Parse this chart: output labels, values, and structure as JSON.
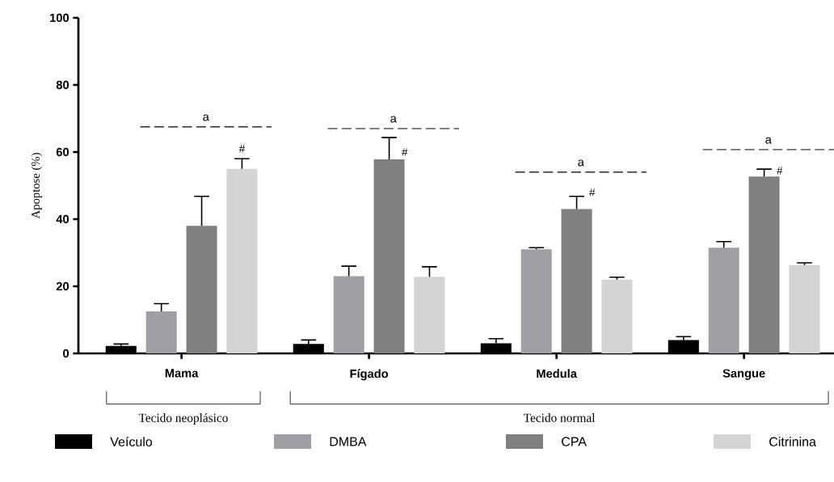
{
  "chart_data": {
    "type": "bar",
    "ylabel": "Apoptose (%)",
    "categories": [
      "Mama",
      "Fígado",
      "Medula",
      "Sangue"
    ],
    "series": [
      {
        "name": "Veículo",
        "color": "#000000",
        "values": [
          2.2,
          2.8,
          3.0,
          4.0
        ],
        "errors": [
          0.6,
          1.2,
          1.4,
          1.0
        ]
      },
      {
        "name": "DMBA",
        "color": "#a0a0a4",
        "values": [
          12.5,
          23.0,
          31.0,
          31.5
        ],
        "errors": [
          2.3,
          3.0,
          0.5,
          1.8
        ]
      },
      {
        "name": "CPA",
        "color": "#808080",
        "values": [
          38.0,
          57.8,
          43.0,
          52.7
        ],
        "errors": [
          8.8,
          6.5,
          3.8,
          2.2
        ]
      },
      {
        "name": "Citrinina",
        "color": "#d4d4d4",
        "values": [
          55.0,
          22.8,
          22.0,
          26.3
        ],
        "errors": [
          3.0,
          3.0,
          0.7,
          0.7
        ]
      }
    ],
    "ylim": [
      0,
      100
    ],
    "yticks": [
      0,
      20,
      40,
      60,
      80,
      100
    ],
    "grid": false,
    "legend": "bottom",
    "annotations": [
      "a",
      "a",
      "a",
      "a",
      "#",
      "#",
      "#",
      "#",
      "Tecido neoplásico",
      "Tecido normal"
    ]
  }
}
